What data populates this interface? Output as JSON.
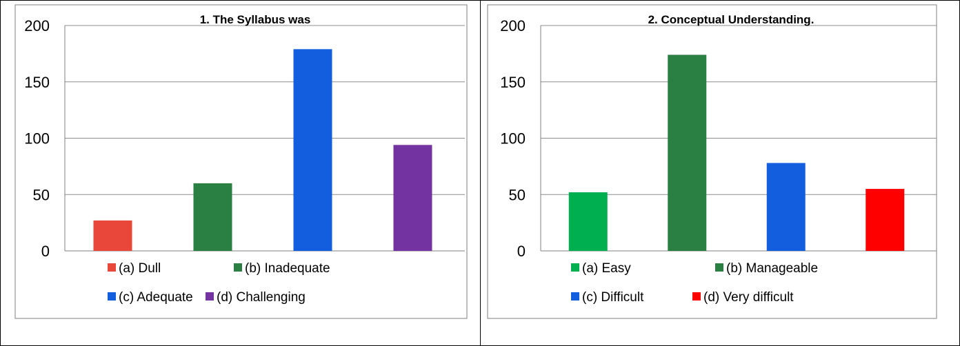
{
  "chart_data": [
    {
      "type": "bar",
      "title": "1. The Syllabus was",
      "categories": [
        "(a) Dull",
        "(b) Inadequate",
        "(c) Adequate",
        "(d) Challenging"
      ],
      "values": [
        27,
        60,
        179,
        94
      ],
      "colors": [
        "#e8473a",
        "#2a7f43",
        "#135ede",
        "#7334a2"
      ],
      "ylim": [
        0,
        200
      ],
      "yticks": [
        0,
        50,
        100,
        150,
        200
      ],
      "grid": true,
      "legend": "bottom"
    },
    {
      "type": "bar",
      "title": "2. Conceptual Understanding.",
      "categories": [
        "(a) Easy",
        "(b) Manageable",
        "(c) Difficult",
        "(d) Very difficult"
      ],
      "values": [
        52,
        174,
        78,
        55
      ],
      "colors": [
        "#00b050",
        "#2a7f43",
        "#135ede",
        "#ff0000"
      ],
      "ylim": [
        0,
        200
      ],
      "yticks": [
        0,
        50,
        100,
        150,
        200
      ],
      "grid": true,
      "legend": "bottom"
    }
  ]
}
